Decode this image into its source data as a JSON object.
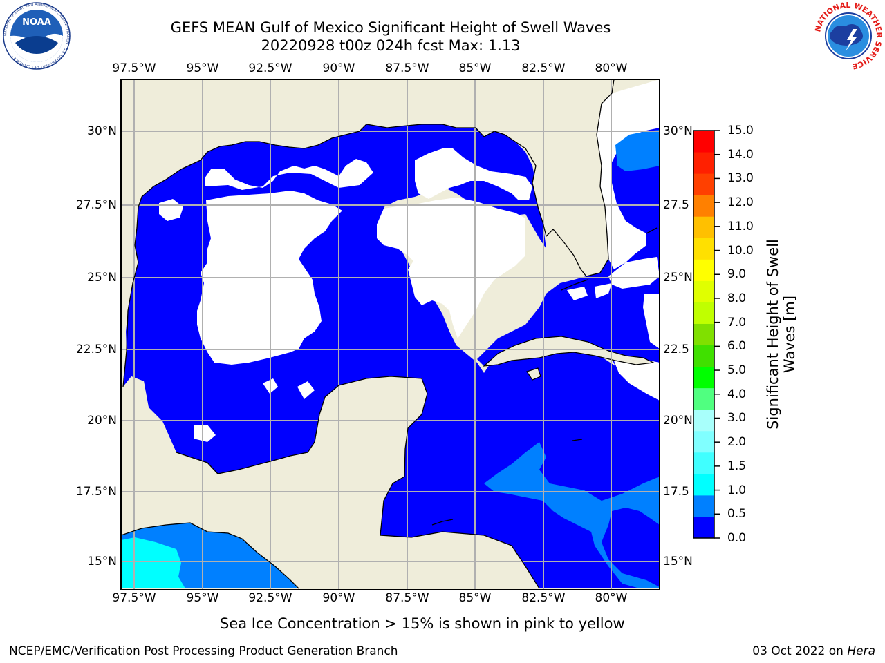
{
  "header": {
    "title_line1": "GEFS MEAN Gulf of Mexico Significant Height of Swell Waves",
    "title_line2": "20220928 t00z 024h fcst   Max: 1.13"
  },
  "logos": {
    "left": {
      "name": "NOAA",
      "ring_text": "NATIONAL OCEANIC AND ATMOSPHERIC ADMINISTRATION · U.S. DEPARTMENT OF COMMERCE ·"
    },
    "right": {
      "name": "NATIONAL WEATHER SERVICE"
    }
  },
  "map": {
    "lon_labels": [
      "97.5°W",
      "95°W",
      "92.5°W",
      "90°W",
      "87.5°W",
      "85°W",
      "82.5°W",
      "80°W"
    ],
    "lat_labels_left": [
      "30°N",
      "27.5°N",
      "25°N",
      "22.5°N",
      "20°N",
      "17.5°N",
      "15°N"
    ],
    "lat_labels_right": [
      "30°N",
      "27.5",
      "25°N",
      "22.5",
      "20°N",
      "17.5",
      "15°N"
    ],
    "land_color": "#efedda",
    "grid_color": "#b0b0b0",
    "open_water_color": "#ffffff"
  },
  "colorbar": {
    "label_line1": "Significant Height of Swell",
    "label_line2": "Waves [m]",
    "tick_labels": [
      "15.0",
      "14.0",
      "13.0",
      "12.0",
      "11.0",
      "10.0",
      "9.0",
      "8.0",
      "7.0",
      "6.0",
      "5.0",
      "4.0",
      "3.0",
      "2.0",
      "1.5",
      "1.0",
      "0.5",
      "0.0"
    ],
    "colors": [
      "#0000ff",
      "#0080ff",
      "#00ffff",
      "#40ffff",
      "#80ffff",
      "#a8fffb",
      "#50ff80",
      "#00ff00",
      "#40e000",
      "#80e000",
      "#c0ff00",
      "#e0ff00",
      "#ffff00",
      "#ffe000",
      "#ffc000",
      "#ff8000",
      "#ff4000",
      "#ff2000",
      "#ff0000"
    ]
  },
  "footer": {
    "footnote": "Sea Ice Concentration > 15% is shown in pink to yellow",
    "credit_left": "NCEP/EMC/Verification Post Processing Product Generation Branch",
    "credit_date": "03 Oct 2022 on ",
    "credit_host": "Hera"
  }
}
